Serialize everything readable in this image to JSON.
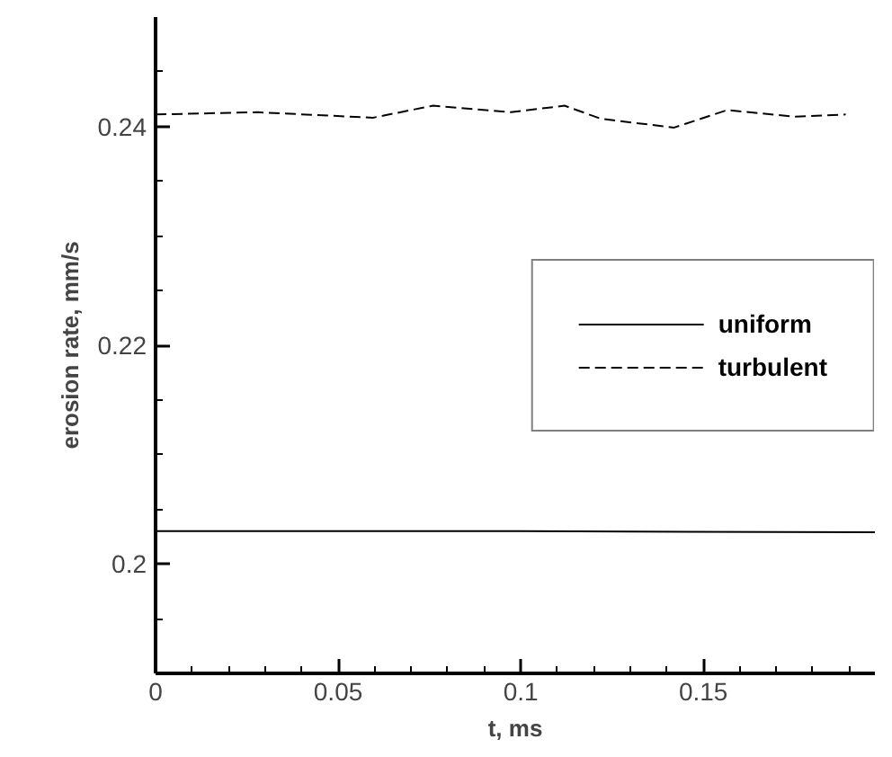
{
  "chart_data": {
    "type": "line",
    "xlabel": "t, ms",
    "ylabel": "erosion rate, mm/s",
    "xlim": [
      0,
      0.197
    ],
    "ylim": [
      0.19,
      0.25
    ],
    "xticks": [
      0,
      0.05,
      0.1,
      0.15,
      {
        "value": 0.01,
        "label": null
      },
      {
        "value": 0.02,
        "label": null
      },
      {
        "value": 0.03,
        "label": null
      },
      {
        "value": 0.04,
        "label": null
      },
      {
        "value": 0.06,
        "label": null
      },
      {
        "value": 0.07,
        "label": null
      },
      {
        "value": 0.08,
        "label": null
      },
      {
        "value": 0.09,
        "label": null
      },
      {
        "value": 0.11,
        "label": null
      },
      {
        "value": 0.12,
        "label": null
      },
      {
        "value": 0.13,
        "label": null
      },
      {
        "value": 0.14,
        "label": null
      },
      {
        "value": 0.16,
        "label": null
      },
      {
        "value": 0.17,
        "label": null
      },
      {
        "value": 0.18,
        "label": null
      },
      {
        "value": 0.19,
        "label": null
      }
    ],
    "yticks": [
      0.2,
      0.22,
      0.24,
      {
        "value": 0.195,
        "label": null
      },
      {
        "value": 0.205,
        "label": null
      },
      {
        "value": 0.21,
        "label": null
      },
      {
        "value": 0.215,
        "label": null
      },
      {
        "value": 0.225,
        "label": null
      },
      {
        "value": 0.23,
        "label": null
      },
      {
        "value": 0.235,
        "label": null
      },
      {
        "value": 0.245,
        "label": null
      }
    ],
    "grid": false,
    "legend": "right",
    "marker": "none",
    "series": [
      {
        "name": "uniform",
        "color": "#000000",
        "line_style": "solid",
        "x": [
          0,
          0.1,
          0.197
        ],
        "values": [
          0.203,
          0.203,
          0.2029
        ]
      },
      {
        "name": "turbulent",
        "color": "#000000",
        "line_style": "dashed",
        "x": [
          0,
          0.028,
          0.0595,
          0.076,
          0.0973,
          0.112,
          0.122,
          0.142,
          0.1566,
          0.1747,
          0.189
        ],
        "values": [
          0.2411,
          0.2413,
          0.2408,
          0.2419,
          0.2413,
          0.2419,
          0.2407,
          0.2399,
          0.2415,
          0.2409,
          0.2411
        ]
      }
    ]
  }
}
